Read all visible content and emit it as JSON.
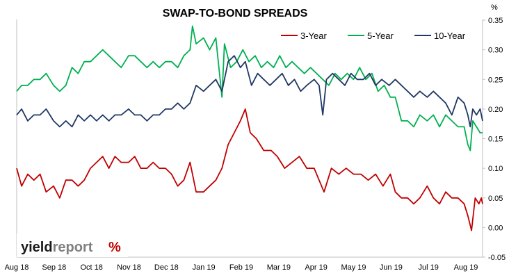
{
  "chart_data": {
    "type": "line",
    "title": "SWAP-TO-BOND SPREADS",
    "y_unit": "%",
    "ylim": [
      -0.05,
      0.35
    ],
    "y_ticks": [
      "-0.05",
      "0.00",
      "0.05",
      "0.10",
      "0.15",
      "0.20",
      "0.25",
      "0.30",
      "0.35"
    ],
    "x_range": [
      "2018-08-01",
      "2019-08-15"
    ],
    "x_tick_labels": [
      "Aug 18",
      "Sep 18",
      "Oct 18",
      "Nov 18",
      "Dec 18",
      "Jan 19",
      "Feb 19",
      "Mar 19",
      "Apr 19",
      "May 19",
      "Jun 19",
      "Jul 19",
      "Aug 19"
    ],
    "grid": false,
    "legend_position": "top-right",
    "series": [
      {
        "name": "3-Year",
        "color": "#c00000",
        "points": [
          [
            "2018-08-01",
            0.1
          ],
          [
            "2018-08-05",
            0.07
          ],
          [
            "2018-08-10",
            0.09
          ],
          [
            "2018-08-15",
            0.08
          ],
          [
            "2018-08-20",
            0.09
          ],
          [
            "2018-08-25",
            0.06
          ],
          [
            "2018-08-31",
            0.07
          ],
          [
            "2018-09-05",
            0.05
          ],
          [
            "2018-09-10",
            0.08
          ],
          [
            "2018-09-15",
            0.08
          ],
          [
            "2018-09-20",
            0.07
          ],
          [
            "2018-09-25",
            0.08
          ],
          [
            "2018-09-30",
            0.1
          ],
          [
            "2018-10-05",
            0.11
          ],
          [
            "2018-10-10",
            0.12
          ],
          [
            "2018-10-15",
            0.1
          ],
          [
            "2018-10-20",
            0.12
          ],
          [
            "2018-10-25",
            0.11
          ],
          [
            "2018-10-31",
            0.11
          ],
          [
            "2018-11-05",
            0.12
          ],
          [
            "2018-11-10",
            0.1
          ],
          [
            "2018-11-15",
            0.1
          ],
          [
            "2018-11-20",
            0.11
          ],
          [
            "2018-11-25",
            0.1
          ],
          [
            "2018-11-30",
            0.1
          ],
          [
            "2018-12-05",
            0.09
          ],
          [
            "2018-12-10",
            0.07
          ],
          [
            "2018-12-15",
            0.08
          ],
          [
            "2018-12-20",
            0.11
          ],
          [
            "2018-12-25",
            0.06
          ],
          [
            "2018-12-31",
            0.06
          ],
          [
            "2019-01-05",
            0.07
          ],
          [
            "2019-01-10",
            0.08
          ],
          [
            "2019-01-15",
            0.1
          ],
          [
            "2019-01-20",
            0.14
          ],
          [
            "2019-01-25",
            0.16
          ],
          [
            "2019-01-30",
            0.18
          ],
          [
            "2019-02-03",
            0.2
          ],
          [
            "2019-02-07",
            0.16
          ],
          [
            "2019-02-12",
            0.15
          ],
          [
            "2019-02-18",
            0.13
          ],
          [
            "2019-02-24",
            0.13
          ],
          [
            "2019-03-01",
            0.12
          ],
          [
            "2019-03-07",
            0.1
          ],
          [
            "2019-03-13",
            0.11
          ],
          [
            "2019-03-19",
            0.12
          ],
          [
            "2019-03-25",
            0.1
          ],
          [
            "2019-03-31",
            0.1
          ],
          [
            "2019-04-04",
            0.08
          ],
          [
            "2019-04-08",
            0.06
          ],
          [
            "2019-04-14",
            0.1
          ],
          [
            "2019-04-20",
            0.09
          ],
          [
            "2019-04-26",
            0.1
          ],
          [
            "2019-05-02",
            0.09
          ],
          [
            "2019-05-08",
            0.09
          ],
          [
            "2019-05-14",
            0.08
          ],
          [
            "2019-05-20",
            0.09
          ],
          [
            "2019-05-26",
            0.07
          ],
          [
            "2019-06-01",
            0.09
          ],
          [
            "2019-06-05",
            0.06
          ],
          [
            "2019-06-10",
            0.05
          ],
          [
            "2019-06-15",
            0.05
          ],
          [
            "2019-06-20",
            0.04
          ],
          [
            "2019-06-25",
            0.05
          ],
          [
            "2019-07-01",
            0.07
          ],
          [
            "2019-07-06",
            0.05
          ],
          [
            "2019-07-11",
            0.04
          ],
          [
            "2019-07-16",
            0.06
          ],
          [
            "2019-07-21",
            0.05
          ],
          [
            "2019-07-26",
            0.05
          ],
          [
            "2019-07-31",
            0.04
          ],
          [
            "2019-08-03",
            0.02
          ],
          [
            "2019-08-06",
            -0.005
          ],
          [
            "2019-08-09",
            0.05
          ],
          [
            "2019-08-12",
            0.04
          ],
          [
            "2019-08-14",
            0.05
          ],
          [
            "2019-08-15",
            0.04
          ]
        ]
      },
      {
        "name": "5-Year",
        "color": "#00b050",
        "points": [
          [
            "2018-08-01",
            0.23
          ],
          [
            "2018-08-05",
            0.24
          ],
          [
            "2018-08-10",
            0.24
          ],
          [
            "2018-08-15",
            0.25
          ],
          [
            "2018-08-20",
            0.25
          ],
          [
            "2018-08-25",
            0.26
          ],
          [
            "2018-08-31",
            0.24
          ],
          [
            "2018-09-05",
            0.23
          ],
          [
            "2018-09-10",
            0.24
          ],
          [
            "2018-09-15",
            0.27
          ],
          [
            "2018-09-20",
            0.26
          ],
          [
            "2018-09-25",
            0.28
          ],
          [
            "2018-09-30",
            0.28
          ],
          [
            "2018-10-05",
            0.29
          ],
          [
            "2018-10-10",
            0.3
          ],
          [
            "2018-10-15",
            0.29
          ],
          [
            "2018-10-20",
            0.28
          ],
          [
            "2018-10-25",
            0.27
          ],
          [
            "2018-10-31",
            0.29
          ],
          [
            "2018-11-05",
            0.29
          ],
          [
            "2018-11-10",
            0.28
          ],
          [
            "2018-11-15",
            0.27
          ],
          [
            "2018-11-20",
            0.28
          ],
          [
            "2018-11-25",
            0.27
          ],
          [
            "2018-11-30",
            0.28
          ],
          [
            "2018-12-05",
            0.28
          ],
          [
            "2018-12-10",
            0.27
          ],
          [
            "2018-12-15",
            0.29
          ],
          [
            "2018-12-20",
            0.3
          ],
          [
            "2018-12-22",
            0.34
          ],
          [
            "2018-12-25",
            0.31
          ],
          [
            "2018-12-31",
            0.32
          ],
          [
            "2019-01-05",
            0.3
          ],
          [
            "2019-01-10",
            0.32
          ],
          [
            "2019-01-15",
            0.22
          ],
          [
            "2019-01-17",
            0.31
          ],
          [
            "2019-01-22",
            0.27
          ],
          [
            "2019-01-27",
            0.28
          ],
          [
            "2019-02-01",
            0.3
          ],
          [
            "2019-02-06",
            0.28
          ],
          [
            "2019-02-11",
            0.29
          ],
          [
            "2019-02-16",
            0.27
          ],
          [
            "2019-02-21",
            0.28
          ],
          [
            "2019-02-26",
            0.27
          ],
          [
            "2019-03-03",
            0.29
          ],
          [
            "2019-03-08",
            0.27
          ],
          [
            "2019-03-13",
            0.28
          ],
          [
            "2019-03-18",
            0.27
          ],
          [
            "2019-03-23",
            0.26
          ],
          [
            "2019-03-28",
            0.27
          ],
          [
            "2019-04-02",
            0.26
          ],
          [
            "2019-04-07",
            0.25
          ],
          [
            "2019-04-12",
            0.24
          ],
          [
            "2019-04-17",
            0.26
          ],
          [
            "2019-04-22",
            0.25
          ],
          [
            "2019-04-27",
            0.26
          ],
          [
            "2019-05-02",
            0.25
          ],
          [
            "2019-05-07",
            0.27
          ],
          [
            "2019-05-12",
            0.25
          ],
          [
            "2019-05-17",
            0.26
          ],
          [
            "2019-05-22",
            0.23
          ],
          [
            "2019-05-27",
            0.24
          ],
          [
            "2019-06-01",
            0.22
          ],
          [
            "2019-06-05",
            0.22
          ],
          [
            "2019-06-10",
            0.18
          ],
          [
            "2019-06-15",
            0.18
          ],
          [
            "2019-06-20",
            0.17
          ],
          [
            "2019-06-25",
            0.19
          ],
          [
            "2019-07-01",
            0.18
          ],
          [
            "2019-07-06",
            0.19
          ],
          [
            "2019-07-11",
            0.17
          ],
          [
            "2019-07-16",
            0.19
          ],
          [
            "2019-07-21",
            0.18
          ],
          [
            "2019-07-26",
            0.17
          ],
          [
            "2019-07-31",
            0.17
          ],
          [
            "2019-08-03",
            0.14
          ],
          [
            "2019-08-05",
            0.13
          ],
          [
            "2019-08-07",
            0.18
          ],
          [
            "2019-08-10",
            0.17
          ],
          [
            "2019-08-13",
            0.16
          ],
          [
            "2019-08-15",
            0.16
          ]
        ]
      },
      {
        "name": "10-Year",
        "color": "#1f3864",
        "points": [
          [
            "2018-08-01",
            0.19
          ],
          [
            "2018-08-05",
            0.2
          ],
          [
            "2018-08-10",
            0.18
          ],
          [
            "2018-08-15",
            0.19
          ],
          [
            "2018-08-20",
            0.19
          ],
          [
            "2018-08-25",
            0.2
          ],
          [
            "2018-08-31",
            0.18
          ],
          [
            "2018-09-05",
            0.17
          ],
          [
            "2018-09-10",
            0.18
          ],
          [
            "2018-09-15",
            0.17
          ],
          [
            "2018-09-20",
            0.19
          ],
          [
            "2018-09-25",
            0.18
          ],
          [
            "2018-09-30",
            0.19
          ],
          [
            "2018-10-05",
            0.18
          ],
          [
            "2018-10-10",
            0.19
          ],
          [
            "2018-10-15",
            0.18
          ],
          [
            "2018-10-20",
            0.19
          ],
          [
            "2018-10-25",
            0.19
          ],
          [
            "2018-10-31",
            0.2
          ],
          [
            "2018-11-05",
            0.19
          ],
          [
            "2018-11-10",
            0.19
          ],
          [
            "2018-11-15",
            0.18
          ],
          [
            "2018-11-20",
            0.19
          ],
          [
            "2018-11-25",
            0.19
          ],
          [
            "2018-11-30",
            0.2
          ],
          [
            "2018-12-05",
            0.2
          ],
          [
            "2018-12-10",
            0.21
          ],
          [
            "2018-12-15",
            0.2
          ],
          [
            "2018-12-20",
            0.21
          ],
          [
            "2018-12-25",
            0.24
          ],
          [
            "2018-12-31",
            0.23
          ],
          [
            "2019-01-05",
            0.24
          ],
          [
            "2019-01-10",
            0.25
          ],
          [
            "2019-01-15",
            0.23
          ],
          [
            "2019-01-20",
            0.28
          ],
          [
            "2019-01-25",
            0.29
          ],
          [
            "2019-01-30",
            0.27
          ],
          [
            "2019-02-03",
            0.28
          ],
          [
            "2019-02-08",
            0.24
          ],
          [
            "2019-02-13",
            0.26
          ],
          [
            "2019-02-18",
            0.25
          ],
          [
            "2019-02-23",
            0.24
          ],
          [
            "2019-02-28",
            0.25
          ],
          [
            "2019-03-05",
            0.26
          ],
          [
            "2019-03-10",
            0.24
          ],
          [
            "2019-03-15",
            0.25
          ],
          [
            "2019-03-20",
            0.23
          ],
          [
            "2019-03-25",
            0.24
          ],
          [
            "2019-03-31",
            0.25
          ],
          [
            "2019-04-04",
            0.24
          ],
          [
            "2019-04-07",
            0.19
          ],
          [
            "2019-04-10",
            0.25
          ],
          [
            "2019-04-15",
            0.26
          ],
          [
            "2019-04-20",
            0.25
          ],
          [
            "2019-04-25",
            0.24
          ],
          [
            "2019-04-30",
            0.26
          ],
          [
            "2019-05-05",
            0.25
          ],
          [
            "2019-05-10",
            0.25
          ],
          [
            "2019-05-15",
            0.26
          ],
          [
            "2019-05-20",
            0.24
          ],
          [
            "2019-05-25",
            0.25
          ],
          [
            "2019-05-31",
            0.24
          ],
          [
            "2019-06-05",
            0.25
          ],
          [
            "2019-06-10",
            0.24
          ],
          [
            "2019-06-15",
            0.23
          ],
          [
            "2019-06-20",
            0.22
          ],
          [
            "2019-06-25",
            0.23
          ],
          [
            "2019-07-01",
            0.22
          ],
          [
            "2019-07-06",
            0.23
          ],
          [
            "2019-07-11",
            0.22
          ],
          [
            "2019-07-16",
            0.21
          ],
          [
            "2019-07-21",
            0.19
          ],
          [
            "2019-07-26",
            0.22
          ],
          [
            "2019-07-31",
            0.21
          ],
          [
            "2019-08-03",
            0.19
          ],
          [
            "2019-08-05",
            0.17
          ],
          [
            "2019-08-07",
            0.2
          ],
          [
            "2019-08-10",
            0.19
          ],
          [
            "2019-08-13",
            0.2
          ],
          [
            "2019-08-15",
            0.18
          ]
        ]
      }
    ]
  },
  "logo": {
    "text_a": "yield",
    "text_b": "report",
    "mark": "%",
    "colors": {
      "yield": "#1a1a1a",
      "report": "#808080",
      "mark_red": "#c00000",
      "mark_green": "#00b050"
    }
  }
}
